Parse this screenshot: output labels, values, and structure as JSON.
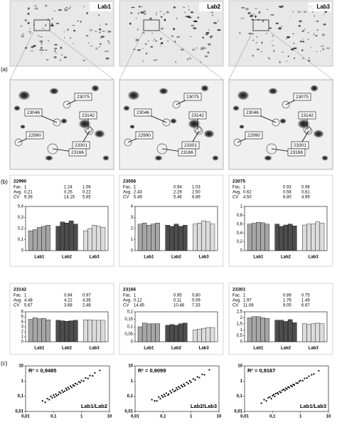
{
  "panels": [
    "(a)",
    "(b)",
    "(c)"
  ],
  "gels": [
    {
      "label": "Lab1"
    },
    {
      "label": "Lab2"
    },
    {
      "label": "Lab3"
    }
  ],
  "spots": [
    "23075",
    "23046",
    "23142",
    "22990",
    "23301",
    "23166"
  ],
  "chart_data": [
    {
      "type": "bar",
      "title": "22990",
      "stats": [
        {
          "label": "Fac.",
          "values": [
            "1",
            "1.24",
            "1.06"
          ]
        },
        {
          "label": "Avg.",
          "values": [
            "0.21",
            "0.25",
            "0.22"
          ]
        },
        {
          "label": "CV",
          "values": [
            "9.39",
            "14.15",
            "5.65"
          ]
        }
      ],
      "categories": [
        "Lab1",
        "Lab2",
        "Lab3"
      ],
      "values": [
        [
          0.18,
          0.19,
          0.21,
          0.22,
          0.23
        ],
        [
          0.22,
          0.26,
          0.25,
          0.27,
          0.24
        ],
        [
          0.18,
          0.2,
          0.23,
          0.22,
          0.21
        ]
      ],
      "colors": [
        "#a6a6a6",
        "#4d4d4d",
        "#dcdcdc"
      ],
      "ylim": [
        0,
        0.4
      ],
      "yticks": [
        0,
        {
          "value": 0.1,
          "label": "0,1"
        },
        {
          "value": 0.2,
          "label": "0,2"
        },
        {
          "value": 0.3,
          "label": "0,3"
        },
        {
          "value": 0.4,
          "label": "0,4"
        }
      ]
    },
    {
      "type": "bar",
      "title": "23056",
      "stats": [
        {
          "label": "Fac.",
          "values": [
            "1",
            "0.94",
            "1.03"
          ]
        },
        {
          "label": "Avg.",
          "values": [
            "2.43",
            "2.29",
            "2.50"
          ]
        },
        {
          "label": "CV",
          "values": [
            "5.49",
            "5.46",
            "6.89"
          ]
        }
      ],
      "categories": [
        "Lab1",
        "Lab2",
        "Lab3"
      ],
      "values": [
        [
          2.4,
          2.5,
          2.3,
          2.4,
          2.5
        ],
        [
          2.3,
          2.2,
          2.4,
          2.2,
          2.3
        ],
        [
          2.4,
          2.5,
          2.7,
          2.6,
          2.4
        ]
      ],
      "colors": [
        "#a6a6a6",
        "#4d4d4d",
        "#dcdcdc"
      ],
      "ylim": [
        0,
        4
      ],
      "yticks": [
        0,
        1,
        2,
        3,
        4
      ]
    },
    {
      "type": "bar",
      "title": "23075",
      "stats": [
        {
          "label": "Fac.",
          "values": [
            "1",
            "0.93",
            "0.98"
          ]
        },
        {
          "label": "Avg.",
          "values": [
            "0.62",
            "0.58",
            "0.61"
          ]
        },
        {
          "label": "CV",
          "values": [
            "4.50",
            "8.80",
            "4.99"
          ]
        }
      ],
      "categories": [
        "Lab1",
        "Lab2",
        "Lab3"
      ],
      "values": [
        [
          0.6,
          0.62,
          0.64,
          0.63,
          0.6
        ],
        [
          0.6,
          0.55,
          0.58,
          0.6,
          0.56
        ],
        [
          0.58,
          0.6,
          0.6,
          0.65,
          0.62
        ]
      ],
      "colors": [
        "#a6a6a6",
        "#4d4d4d",
        "#dcdcdc"
      ],
      "ylim": [
        0,
        1
      ],
      "yticks": [
        0,
        {
          "value": 0.2,
          "label": "0,2"
        },
        {
          "value": 0.4,
          "label": "0,4"
        },
        {
          "value": 0.6,
          "label": "0,6"
        },
        {
          "value": 0.8,
          "label": "0,8"
        },
        1
      ]
    },
    {
      "type": "bar",
      "title": "23142",
      "stats": [
        {
          "label": "Fac.",
          "values": [
            "1",
            "0.94",
            "0.97"
          ]
        },
        {
          "label": "Avg.",
          "values": [
            "4.48",
            "4.22",
            "4.36"
          ]
        },
        {
          "label": "CV",
          "values": [
            "5.67",
            "3.68",
            "2.48"
          ]
        }
      ],
      "categories": [
        "Lab1",
        "Lab2",
        "Lab3"
      ],
      "values": [
        [
          4.5,
          4.8,
          4.6,
          4.7,
          4.4
        ],
        [
          4.3,
          4.2,
          4.1,
          4.2,
          4.3
        ],
        [
          4.4,
          4.4,
          4.3,
          4.3,
          4.3
        ]
      ],
      "colors": [
        "#a6a6a6",
        "#4d4d4d",
        "#dcdcdc"
      ],
      "ylim": [
        0,
        6
      ],
      "yticks": [
        0,
        1,
        2,
        3,
        4,
        5,
        6
      ]
    },
    {
      "type": "bar",
      "title": "23166",
      "stats": [
        {
          "label": "Fac.",
          "values": [
            "1",
            "0.95",
            "0.80"
          ]
        },
        {
          "label": "Avg.",
          "values": [
            "0.12",
            "0.11",
            "0.09"
          ]
        },
        {
          "label": "CV",
          "values": [
            "14.45",
            "10.48",
            "7.33"
          ]
        }
      ],
      "categories": [
        "Lab1",
        "Lab2",
        "Lab3"
      ],
      "values": [
        [
          0.1,
          0.125,
          0.12,
          0.12,
          0.12
        ],
        [
          0.11,
          0.115,
          0.11,
          0.12,
          0.125
        ],
        [
          0.08,
          0.085,
          0.09,
          0.095,
          0.095
        ]
      ],
      "colors": [
        "#a6a6a6",
        "#4d4d4d",
        "#dcdcdc"
      ],
      "ylim": [
        0,
        0.2
      ],
      "yticks": [
        0,
        {
          "value": 0.05,
          "label": "0,05"
        },
        {
          "value": 0.1,
          "label": "0,1"
        },
        {
          "value": 0.15,
          "label": "0,15"
        },
        {
          "value": 0.2,
          "label": "0,2"
        }
      ]
    },
    {
      "type": "bar",
      "title": "23301",
      "stats": [
        {
          "label": "Fac.",
          "values": [
            "1",
            "0.89",
            "0.75"
          ]
        },
        {
          "label": "Avg.",
          "values": [
            "1.97",
            "1.76",
            "1.49"
          ]
        },
        {
          "label": "CV",
          "values": [
            "11.08",
            "9.05",
            "6.67"
          ]
        }
      ],
      "categories": [
        "Lab1",
        "Lab2",
        "Lab3"
      ],
      "values": [
        [
          2.0,
          2.1,
          2.1,
          2.0,
          1.95
        ],
        [
          1.8,
          1.8,
          1.7,
          1.85,
          1.6
        ],
        [
          1.5,
          1.45,
          1.5,
          1.55,
          1.5
        ]
      ],
      "colors": [
        "#a6a6a6",
        "#4d4d4d",
        "#dcdcdc"
      ],
      "ylim": [
        0,
        2.5
      ],
      "yticks": [
        0,
        {
          "value": 0.5,
          "label": "0,5"
        },
        1,
        {
          "value": 1.5,
          "label": "1,5"
        },
        2,
        {
          "value": 2.5,
          "label": "2,5"
        }
      ]
    },
    {
      "type": "scatter",
      "annotation": "R² = 0,9485",
      "label": "Lab1/Lab2",
      "log_scale": true,
      "color": "#000000",
      "x": [
        0.04,
        0.05,
        0.06,
        0.07,
        0.08,
        0.09,
        0.1,
        0.11,
        0.12,
        0.13,
        0.15,
        0.16,
        0.18,
        0.2,
        0.22,
        0.25,
        0.28,
        0.3,
        0.33,
        0.36,
        0.4,
        0.45,
        0.5,
        0.55,
        0.6,
        0.7,
        0.8,
        0.9,
        1.0,
        1.2,
        1.4,
        1.7,
        2.0,
        2.5,
        3.0,
        4.5
      ],
      "y": [
        0.05,
        0.04,
        0.07,
        0.06,
        0.1,
        0.08,
        0.12,
        0.09,
        0.14,
        0.11,
        0.13,
        0.19,
        0.16,
        0.24,
        0.19,
        0.22,
        0.33,
        0.26,
        0.38,
        0.3,
        0.46,
        0.38,
        0.55,
        0.48,
        0.7,
        0.62,
        0.9,
        0.8,
        1.1,
        1.0,
        1.6,
        1.5,
        2.3,
        2.2,
        3.5,
        5.0
      ],
      "xlim": [
        0.01,
        10
      ],
      "ylim": [
        0.01,
        10
      ],
      "xticks": [
        {
          "value": 0.01,
          "label": "0,01"
        },
        {
          "value": 0.1,
          "label": "0,1"
        },
        1,
        10
      ],
      "yticks": [
        {
          "value": 0.01,
          "label": "0,01"
        },
        {
          "value": 0.1,
          "label": "0,1"
        },
        1,
        10
      ]
    },
    {
      "type": "scatter",
      "annotation": "R² = 0,9099",
      "label": "Lab2/Lab3",
      "log_scale": true,
      "color": "#000000",
      "x": [
        0.04,
        0.05,
        0.06,
        0.07,
        0.08,
        0.09,
        0.1,
        0.11,
        0.12,
        0.13,
        0.15,
        0.16,
        0.18,
        0.2,
        0.22,
        0.25,
        0.28,
        0.3,
        0.33,
        0.36,
        0.4,
        0.45,
        0.5,
        0.55,
        0.6,
        0.7,
        0.8,
        0.9,
        1.0,
        1.2,
        1.4,
        1.7,
        2.0,
        2.5,
        3.0,
        4.5
      ],
      "y": [
        0.06,
        0.05,
        0.05,
        0.09,
        0.07,
        0.11,
        0.09,
        0.13,
        0.1,
        0.16,
        0.12,
        0.14,
        0.22,
        0.17,
        0.27,
        0.21,
        0.24,
        0.36,
        0.28,
        0.42,
        0.34,
        0.52,
        0.43,
        0.62,
        0.5,
        0.82,
        0.68,
        1.05,
        0.85,
        1.4,
        1.2,
        1.9,
        1.7,
        2.8,
        2.6,
        5.5
      ],
      "xlim": [
        0.01,
        10
      ],
      "ylim": [
        0.01,
        10
      ],
      "xticks": [
        {
          "value": 0.01,
          "label": "0,01"
        },
        {
          "value": 0.1,
          "label": "0,1"
        },
        1,
        10
      ],
      "yticks": [
        {
          "value": 0.01,
          "label": "0,01"
        },
        {
          "value": 0.1,
          "label": "0,1"
        },
        1,
        10
      ]
    },
    {
      "type": "scatter",
      "annotation": "R² = 0,9167",
      "label": "Lab1/Lab3",
      "log_scale": true,
      "color": "#000000",
      "x": [
        0.04,
        0.05,
        0.06,
        0.07,
        0.08,
        0.09,
        0.1,
        0.11,
        0.12,
        0.13,
        0.15,
        0.16,
        0.18,
        0.2,
        0.22,
        0.25,
        0.28,
        0.3,
        0.33,
        0.36,
        0.4,
        0.45,
        0.5,
        0.55,
        0.6,
        0.7,
        0.8,
        0.9,
        1.0,
        1.2,
        1.4,
        1.7,
        2.0,
        2.5,
        3.0,
        4.5
      ],
      "y": [
        0.035,
        0.06,
        0.05,
        0.08,
        0.09,
        0.07,
        0.11,
        0.13,
        0.1,
        0.15,
        0.17,
        0.14,
        0.2,
        0.18,
        0.25,
        0.28,
        0.24,
        0.34,
        0.3,
        0.41,
        0.37,
        0.5,
        0.45,
        0.6,
        0.55,
        0.75,
        0.72,
        0.95,
        1.1,
        1.05,
        1.5,
        1.6,
        2.1,
        2.6,
        2.9,
        4.8
      ],
      "xlim": [
        0.01,
        10
      ],
      "ylim": [
        0.01,
        10
      ],
      "xticks": [
        {
          "value": 0.01,
          "label": "0,01"
        },
        {
          "value": 0.1,
          "label": "0,1"
        },
        1,
        10
      ],
      "yticks": [
        {
          "value": 0.01,
          "label": "0,01"
        },
        {
          "value": 0.1,
          "label": "0,1"
        },
        1,
        10
      ]
    }
  ]
}
